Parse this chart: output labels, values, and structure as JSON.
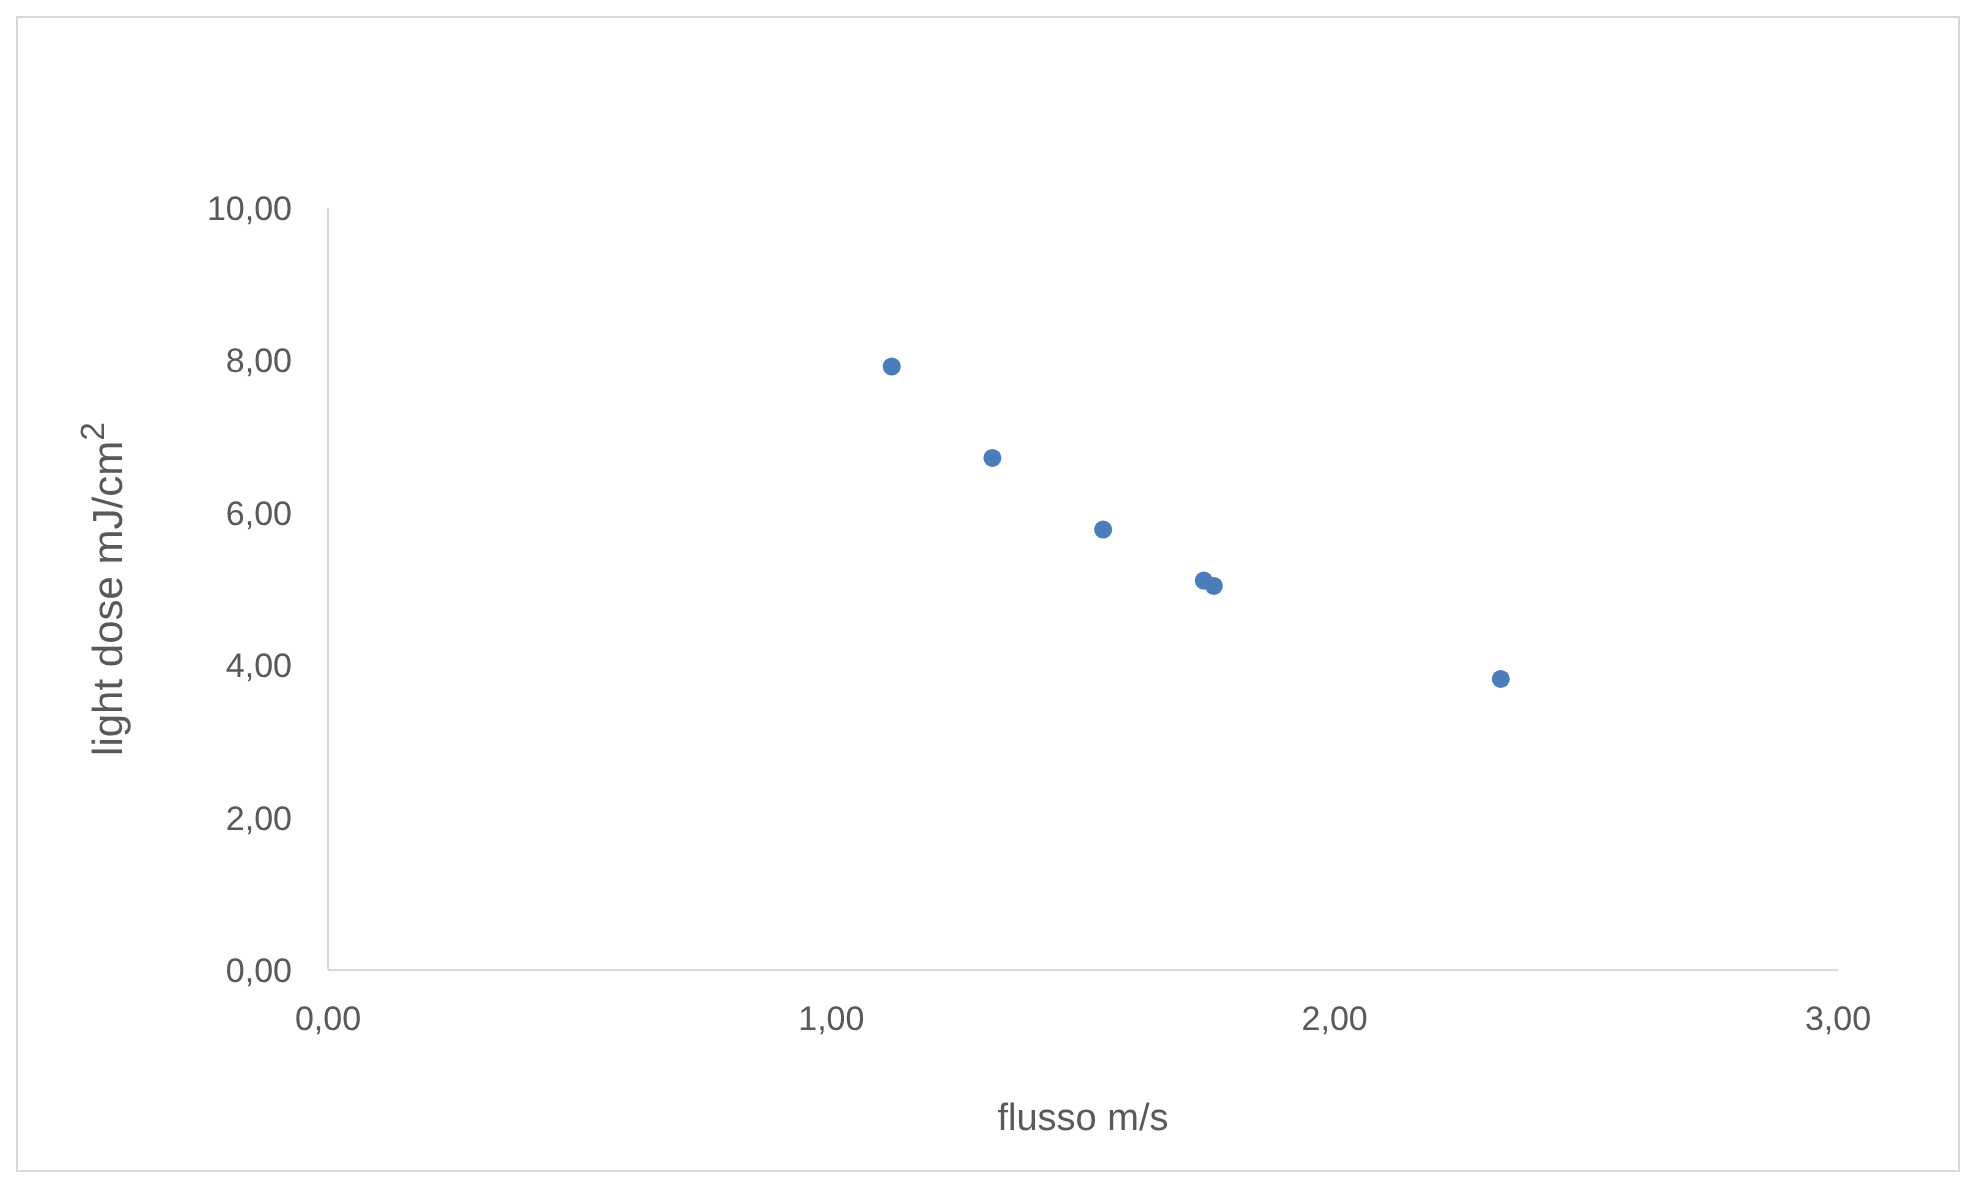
{
  "chart_data": {
    "type": "scatter",
    "xlabel": "flusso m/s",
    "ylabel": "light dose mJ/cm$^{2}$",
    "x": [
      1.12,
      1.32,
      1.54,
      1.74,
      1.76,
      2.33
    ],
    "series": [
      {
        "color": "#4a7ebb",
        "values": [
          7.92,
          6.72,
          5.78,
          5.11,
          5.04,
          3.82
        ]
      }
    ],
    "xlim": [
      0,
      3
    ],
    "xticks": [
      {
        "value": 0,
        "label": "0,00"
      },
      {
        "value": 1,
        "label": "1,00"
      },
      {
        "value": 2,
        "label": "2,00"
      },
      {
        "value": 3,
        "label": "3,00"
      }
    ],
    "ylim": [
      0,
      10
    ],
    "yticks": [
      {
        "value": 0,
        "label": "0,00"
      },
      {
        "value": 2,
        "label": "2,00"
      },
      {
        "value": 4,
        "label": "4,00"
      },
      {
        "value": 6,
        "label": "6,00"
      },
      {
        "value": 8,
        "label": "8,00"
      },
      {
        "value": 10,
        "label": "10,00"
      }
    ],
    "grid": false,
    "marker": "circle"
  }
}
